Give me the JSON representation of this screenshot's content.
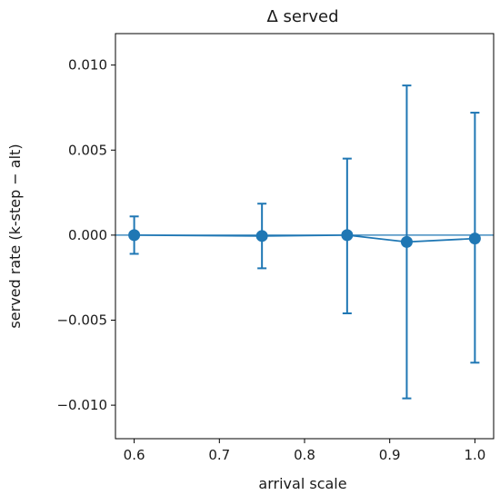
{
  "chart_data": {
    "type": "scatter",
    "title": "Δ served",
    "xlabel": "arrival scale",
    "ylabel": "served rate  (k-step − alt)",
    "xlim": [
      0.578,
      1.022
    ],
    "ylim": [
      -0.01197,
      0.01185
    ],
    "x_ticks": [
      0.6,
      0.7,
      0.8,
      0.9,
      1.0
    ],
    "x_tick_labels": [
      "0.6",
      "0.7",
      "0.8",
      "0.9",
      "1.0"
    ],
    "y_ticks": [
      0.01,
      0.005,
      0.0,
      -0.005,
      -0.01
    ],
    "y_tick_labels": [
      "0.010",
      "0.005",
      "0.000",
      "−0.005",
      "−0.010"
    ],
    "reference_line": 0.0,
    "grid": false,
    "series": [
      {
        "color": "#1f77b4",
        "points": [
          {
            "x": 0.6,
            "y": 0.0,
            "err_low": -0.0011,
            "err_high": 0.0011
          },
          {
            "x": 0.75,
            "y": -5e-05,
            "err_low": -0.00195,
            "err_high": 0.00185
          },
          {
            "x": 0.85,
            "y": 0.0,
            "err_low": -0.0046,
            "err_high": 0.0045
          },
          {
            "x": 0.92,
            "y": -0.0004,
            "err_low": -0.0096,
            "err_high": 0.0088
          },
          {
            "x": 1.0,
            "y": -0.0002,
            "err_low": -0.0075,
            "err_high": 0.0072
          }
        ]
      }
    ]
  }
}
